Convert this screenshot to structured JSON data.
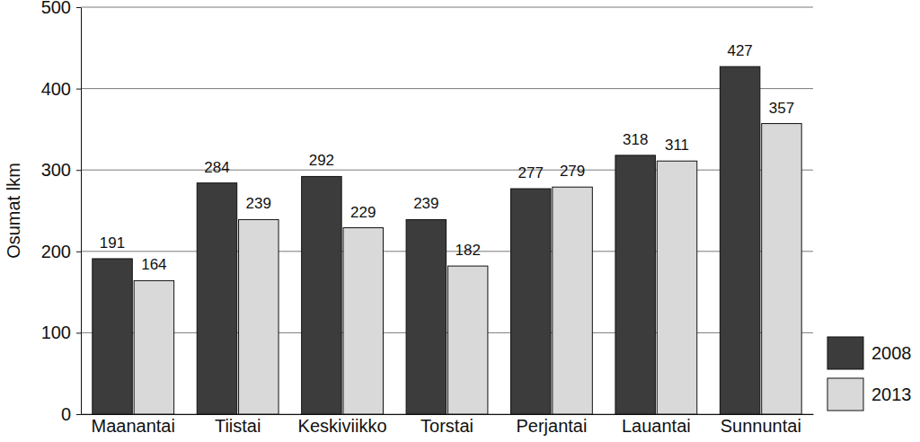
{
  "chart_data": {
    "type": "bar",
    "y_label": "Osumat lkm",
    "categories": [
      "Maanantai",
      "Tiistai",
      "Keskiviikko",
      "Torstai",
      "Perjantai",
      "Lauantai",
      "Sunnuntai"
    ],
    "series": [
      {
        "name": "2008",
        "color": "#3c3c3c",
        "values": [
          191,
          284,
          292,
          239,
          277,
          318,
          427
        ]
      },
      {
        "name": "2013",
        "color": "#d9d9d9",
        "values": [
          164,
          239,
          229,
          182,
          279,
          311,
          357
        ]
      }
    ],
    "ylim": [
      0,
      500
    ],
    "yticks": [
      0,
      100,
      200,
      300,
      400,
      500
    ],
    "grid": true,
    "data_labels": true,
    "legend": "right"
  }
}
